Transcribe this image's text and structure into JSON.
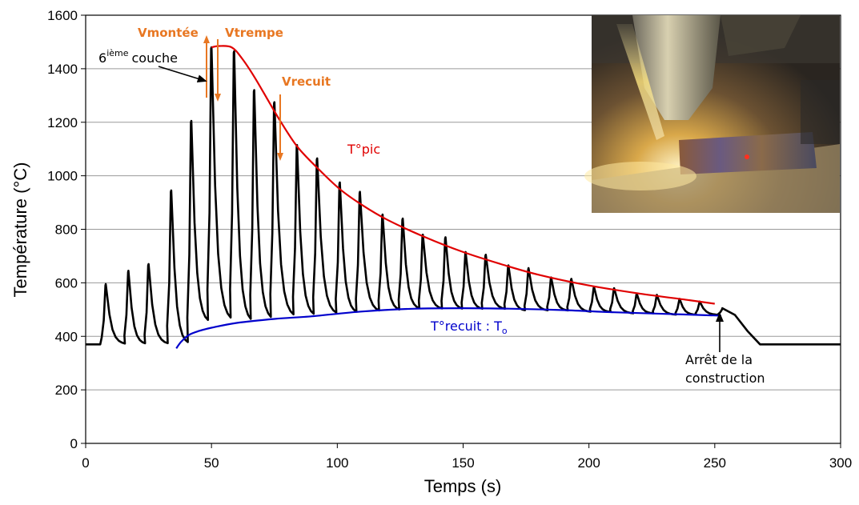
{
  "chart_data": {
    "type": "line",
    "xlabel": "Temps (s)",
    "ylabel": "Température (°C)",
    "xlim": [
      0,
      300
    ],
    "ylim": [
      0,
      1600
    ],
    "xticks": [
      "0",
      "50",
      "100",
      "150",
      "200",
      "250",
      "300"
    ],
    "yticks": [
      "0",
      "200",
      "400",
      "600",
      "800",
      "1000",
      "1200",
      "1400",
      "1600"
    ],
    "grid": "horizontal",
    "legend": "none",
    "colors": {
      "measured": "#000000",
      "peak": "#e00000",
      "anneal": "#0000cc",
      "arrows": "#e87722"
    },
    "series": [
      {
        "key": "measured",
        "baseline_start": 370,
        "baseline_end": 370,
        "cycles": [
          {
            "t": 8,
            "peak": 595,
            "min": 370
          },
          {
            "t": 17,
            "peak": 645,
            "min": 370
          },
          {
            "t": 25,
            "peak": 670,
            "min": 370
          },
          {
            "t": 34,
            "peak": 945,
            "min": 370
          },
          {
            "t": 42,
            "peak": 1205,
            "min": 450
          },
          {
            "t": 50,
            "peak": 1480,
            "min": 455
          },
          {
            "t": 59,
            "peak": 1465,
            "min": 450
          },
          {
            "t": 67,
            "peak": 1320,
            "min": 460
          },
          {
            "t": 75,
            "peak": 1275,
            "min": 470
          },
          {
            "t": 84,
            "peak": 1115,
            "min": 475
          },
          {
            "t": 92,
            "peak": 1065,
            "min": 480
          },
          {
            "t": 101,
            "peak": 975,
            "min": 485
          },
          {
            "t": 109,
            "peak": 940,
            "min": 490
          },
          {
            "t": 118,
            "peak": 855,
            "min": 495
          },
          {
            "t": 126,
            "peak": 840,
            "min": 500
          },
          {
            "t": 134,
            "peak": 780,
            "min": 500
          },
          {
            "t": 143,
            "peak": 770,
            "min": 500
          },
          {
            "t": 151,
            "peak": 715,
            "min": 500
          },
          {
            "t": 159,
            "peak": 705,
            "min": 500
          },
          {
            "t": 168,
            "peak": 665,
            "min": 495
          },
          {
            "t": 176,
            "peak": 655,
            "min": 495
          },
          {
            "t": 185,
            "peak": 620,
            "min": 495
          },
          {
            "t": 193,
            "peak": 615,
            "min": 490
          },
          {
            "t": 202,
            "peak": 585,
            "min": 490
          },
          {
            "t": 210,
            "peak": 580,
            "min": 485
          },
          {
            "t": 219,
            "peak": 560,
            "min": 485
          },
          {
            "t": 227,
            "peak": 555,
            "min": 480
          },
          {
            "t": 236,
            "peak": 540,
            "min": 480
          },
          {
            "t": 244,
            "peak": 530,
            "min": 480
          },
          {
            "t": 253,
            "peak": 505,
            "min": 370
          }
        ],
        "tail": [
          [
            258,
            480
          ],
          [
            263,
            420
          ],
          [
            268,
            370
          ],
          [
            300,
            370
          ]
        ]
      },
      {
        "key": "peak",
        "x": [
          50,
          53,
          58,
          62,
          67,
          72,
          77,
          84,
          92,
          101,
          110,
          120,
          135,
          150,
          165,
          180,
          200,
          220,
          240,
          250
        ],
        "y": [
          1480,
          1485,
          1480,
          1440,
          1370,
          1290,
          1210,
          1110,
          1030,
          950,
          890,
          835,
          770,
          715,
          670,
          630,
          590,
          560,
          535,
          522
        ]
      },
      {
        "key": "anneal",
        "x": [
          36,
          38,
          41,
          45,
          50,
          60,
          75,
          90,
          110,
          130,
          150,
          170,
          190,
          210,
          230,
          250,
          252
        ],
        "y": [
          355,
          380,
          405,
          420,
          432,
          450,
          465,
          475,
          493,
          503,
          505,
          503,
          498,
          490,
          484,
          478,
          478
        ]
      }
    ],
    "annotations": {
      "vmontee": "Vmontée",
      "vtrempe": "Vtrempe",
      "vrecuit": "Vrecuit",
      "layer_num": "6",
      "layer_sup": "ième",
      "layer_word": "couche",
      "tpic": "T°pic",
      "trecuit": "T°recuit : T",
      "trecuit_sub": "o",
      "arret_line1": "Arrêt de la",
      "arret_line2": "construction"
    },
    "photo": {
      "description_icon": "laser-deposition-photo"
    }
  }
}
